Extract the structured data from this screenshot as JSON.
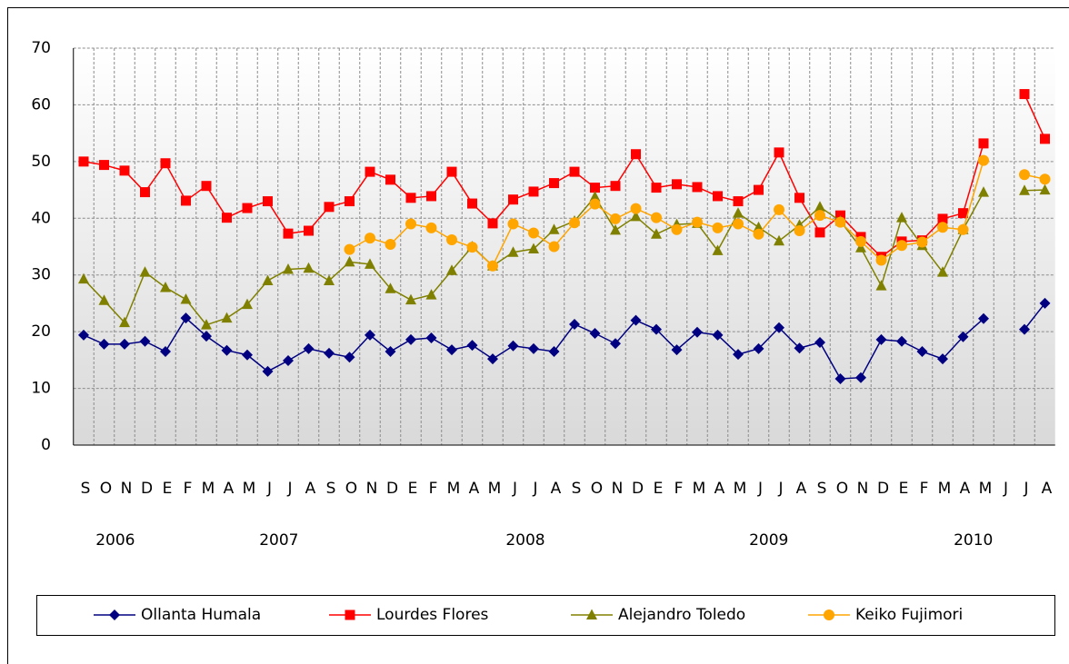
{
  "chart_data": {
    "type": "line",
    "categories": [
      "S",
      "O",
      "N",
      "D",
      "E",
      "F",
      "M",
      "A",
      "M",
      "J",
      "J",
      "A",
      "S",
      "O",
      "N",
      "D",
      "E",
      "F",
      "M",
      "A",
      "M",
      "J",
      "J",
      "A",
      "S",
      "O",
      "N",
      "D",
      "E",
      "F",
      "M",
      "A",
      "M",
      "J",
      "J",
      "A",
      "S",
      "O",
      "N",
      "D",
      "E",
      "F",
      "M",
      "A",
      "M",
      "J",
      "J",
      "A"
    ],
    "year_labels": [
      "2006",
      "2007",
      "2008",
      "2009",
      "2010"
    ],
    "ylim": [
      0,
      70
    ],
    "yticks": [
      0,
      10,
      20,
      30,
      40,
      50,
      60,
      70
    ],
    "grid": true,
    "series": [
      {
        "name": "Ollanta Humala",
        "color": "#000080",
        "marker": "diamond",
        "values": [
          19.4,
          17.8,
          17.8,
          18.3,
          16.5,
          22.4,
          19.2,
          16.7,
          15.9,
          13.0,
          14.9,
          17.0,
          16.2,
          15.5,
          19.4,
          16.5,
          18.6,
          18.9,
          16.8,
          17.6,
          15.2,
          17.5,
          17.0,
          16.5,
          21.3,
          19.7,
          17.9,
          22.0,
          20.4,
          16.8,
          19.9,
          19.4,
          16.0,
          17.0,
          20.7,
          17.1,
          18.1,
          11.7,
          11.9,
          18.6,
          18.3,
          16.5,
          15.2,
          19.1,
          22.3,
          null,
          20.4,
          25.0
        ]
      },
      {
        "name": "Lourdes Flores",
        "color": "#ff0000",
        "marker": "square",
        "values": [
          50.0,
          49.4,
          48.4,
          44.6,
          49.7,
          43.1,
          45.7,
          40.1,
          41.8,
          43.0,
          37.3,
          37.8,
          42.0,
          43.0,
          48.2,
          46.8,
          43.6,
          43.9,
          48.2,
          42.6,
          39.1,
          43.3,
          44.7,
          46.2,
          48.2,
          45.4,
          45.7,
          51.3,
          45.4,
          46.0,
          45.5,
          43.9,
          43.0,
          45.0,
          51.6,
          43.6,
          37.5,
          40.5,
          36.7,
          33.2,
          35.9,
          36.1,
          39.9,
          40.9,
          53.2,
          null,
          61.9,
          54.0
        ]
      },
      {
        "name": "Alejandro Toledo",
        "color": "#808000",
        "marker": "triangle",
        "values": [
          29.3,
          25.5,
          21.6,
          30.5,
          27.8,
          25.7,
          21.2,
          22.4,
          24.8,
          29.0,
          31.0,
          31.2,
          29.0,
          32.3,
          31.9,
          27.6,
          25.6,
          26.5,
          30.8,
          35.0,
          31.6,
          34.0,
          34.6,
          38.0,
          39.5,
          43.8,
          37.9,
          40.3,
          37.2,
          38.9,
          39.1,
          34.3,
          40.9,
          38.4,
          36.0,
          38.8,
          42.0,
          39.5,
          34.8,
          28.1,
          40.1,
          35.2,
          30.5,
          38.0,
          44.6,
          null,
          44.9,
          45.0
        ]
      },
      {
        "name": "Keiko Fujimori",
        "color": "#ffa500",
        "marker": "circle",
        "values": [
          null,
          null,
          null,
          null,
          null,
          null,
          null,
          null,
          null,
          null,
          null,
          null,
          null,
          34.5,
          36.5,
          35.4,
          39.0,
          38.3,
          36.2,
          34.9,
          31.6,
          39.0,
          37.4,
          35.0,
          39.2,
          42.5,
          39.9,
          41.7,
          40.1,
          38.0,
          39.3,
          38.3,
          39.0,
          37.2,
          41.5,
          37.8,
          40.5,
          39.3,
          35.9,
          32.6,
          35.2,
          35.8,
          38.4,
          38.0,
          50.2,
          null,
          47.7,
          46.9
        ]
      }
    ]
  }
}
